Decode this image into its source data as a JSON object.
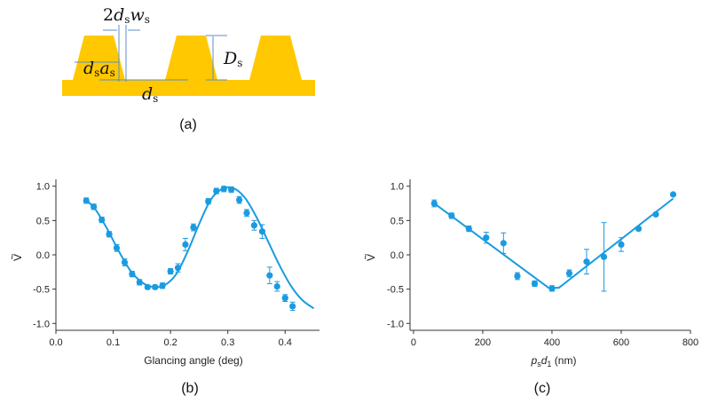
{
  "panel_labels": {
    "a": "(a)",
    "b": "(b)",
    "c": "(c)"
  },
  "diagram": {
    "color": "#ffc800",
    "arrow_color": "#5b8fc9",
    "labels": {
      "width_prefix": "2",
      "d": "d",
      "s": "s",
      "w": "w",
      "a": "a",
      "D": "D"
    }
  },
  "colors": {
    "series": "#1a9be0",
    "axis": "#333333",
    "text": "#222222"
  },
  "chart_data": [
    {
      "type": "scatter",
      "panel": "b",
      "xlabel": "Glancing angle (deg)",
      "ylabel": "V",
      "ylabel_accent": "~",
      "xlim": [
        0.0,
        0.46
      ],
      "ylim": [
        -1.1,
        1.1
      ],
      "xticks": [
        0.0,
        0.1,
        0.2,
        0.3,
        0.4
      ],
      "xtick_labels": [
        "0.0",
        "0.1",
        "0.2",
        "0.3",
        "0.4"
      ],
      "yticks": [
        1.0,
        0.5,
        0.0,
        -0.5,
        -1.0
      ],
      "ytick_labels": [
        "1.0",
        "0.5",
        "0.0",
        "-0.5",
        "-1.0"
      ],
      "grid": false,
      "points": [
        {
          "x": 0.053,
          "y": 0.79,
          "err": 0.04
        },
        {
          "x": 0.066,
          "y": 0.7,
          "err": 0.04
        },
        {
          "x": 0.08,
          "y": 0.51,
          "err": 0.04
        },
        {
          "x": 0.093,
          "y": 0.3,
          "err": 0.04
        },
        {
          "x": 0.106,
          "y": 0.1,
          "err": 0.05
        },
        {
          "x": 0.12,
          "y": -0.11,
          "err": 0.05
        },
        {
          "x": 0.133,
          "y": -0.28,
          "err": 0.04
        },
        {
          "x": 0.146,
          "y": -0.4,
          "err": 0.04
        },
        {
          "x": 0.16,
          "y": -0.47,
          "err": 0.03
        },
        {
          "x": 0.173,
          "y": -0.47,
          "err": 0.03
        },
        {
          "x": 0.186,
          "y": -0.45,
          "err": 0.04
        },
        {
          "x": 0.2,
          "y": -0.24,
          "err": 0.04
        },
        {
          "x": 0.213,
          "y": -0.19,
          "err": 0.06
        },
        {
          "x": 0.226,
          "y": 0.15,
          "err": 0.09
        },
        {
          "x": 0.24,
          "y": 0.4,
          "err": 0.05
        },
        {
          "x": 0.266,
          "y": 0.78,
          "err": 0.04
        },
        {
          "x": 0.28,
          "y": 0.93,
          "err": 0.04
        },
        {
          "x": 0.293,
          "y": 0.96,
          "err": 0.04
        },
        {
          "x": 0.306,
          "y": 0.95,
          "err": 0.04
        },
        {
          "x": 0.32,
          "y": 0.8,
          "err": 0.05
        },
        {
          "x": 0.333,
          "y": 0.61,
          "err": 0.05
        },
        {
          "x": 0.346,
          "y": 0.43,
          "err": 0.07
        },
        {
          "x": 0.36,
          "y": 0.34,
          "err": 0.1
        },
        {
          "x": 0.373,
          "y": -0.3,
          "err": 0.12
        },
        {
          "x": 0.386,
          "y": -0.46,
          "err": 0.07
        },
        {
          "x": 0.4,
          "y": -0.63,
          "err": 0.05
        },
        {
          "x": 0.413,
          "y": -0.75,
          "err": 0.06
        }
      ],
      "fit_x": [
        0.053,
        0.07,
        0.09,
        0.11,
        0.13,
        0.15,
        0.17,
        0.19,
        0.21,
        0.23,
        0.25,
        0.27,
        0.29,
        0.31,
        0.33,
        0.35,
        0.37,
        0.39,
        0.41,
        0.43,
        0.45
      ],
      "fit_y": [
        0.8,
        0.65,
        0.37,
        0.05,
        -0.23,
        -0.4,
        -0.47,
        -0.44,
        -0.28,
        0.05,
        0.45,
        0.8,
        0.96,
        0.97,
        0.83,
        0.55,
        0.2,
        -0.15,
        -0.45,
        -0.66,
        -0.78
      ]
    },
    {
      "type": "scatter",
      "panel": "c",
      "xlabel_var1": "p",
      "xlabel_sub1": "s",
      "xlabel_var2": "d",
      "xlabel_sub2": "1",
      "xlabel_unit": " (nm)",
      "ylabel": "V",
      "ylabel_accent": "~",
      "xlim": [
        -10,
        800
      ],
      "ylim": [
        -1.1,
        1.1
      ],
      "xticks": [
        0,
        200,
        400,
        600,
        800
      ],
      "xtick_labels": [
        "0",
        "200",
        "400",
        "600",
        "800"
      ],
      "yticks": [
        1.0,
        0.5,
        0.0,
        -0.5,
        -1.0
      ],
      "ytick_labels": [
        "1.0",
        "0.5",
        "0.0",
        "-0.5",
        "-1.0"
      ],
      "grid": false,
      "points": [
        {
          "x": 60,
          "y": 0.75,
          "err": 0.05
        },
        {
          "x": 110,
          "y": 0.57,
          "err": 0.04
        },
        {
          "x": 160,
          "y": 0.38,
          "err": 0.04
        },
        {
          "x": 210,
          "y": 0.25,
          "err": 0.08
        },
        {
          "x": 260,
          "y": 0.17,
          "err": 0.15
        },
        {
          "x": 300,
          "y": -0.31,
          "err": 0.05
        },
        {
          "x": 350,
          "y": -0.42,
          "err": 0.04
        },
        {
          "x": 400,
          "y": -0.49,
          "err": 0.04
        },
        {
          "x": 450,
          "y": -0.27,
          "err": 0.05
        },
        {
          "x": 500,
          "y": -0.1,
          "err": 0.18
        },
        {
          "x": 550,
          "y": -0.03,
          "err": 0.5
        },
        {
          "x": 600,
          "y": 0.15,
          "err": 0.1
        },
        {
          "x": 650,
          "y": 0.38,
          "err": 0.03
        },
        {
          "x": 700,
          "y": 0.59,
          "err": 0.02
        },
        {
          "x": 750,
          "y": 0.88,
          "err": 0.0
        }
      ],
      "fit_x": [
        60,
        390,
        420,
        750
      ],
      "fit_y": [
        0.75,
        -0.48,
        -0.48,
        0.82
      ]
    }
  ]
}
